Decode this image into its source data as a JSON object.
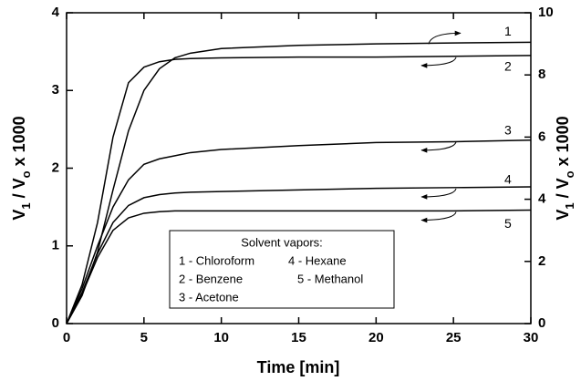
{
  "chart_data": {
    "type": "line",
    "xlabel": "Time  [min]",
    "ylabel": [
      {
        "text": "V"
      },
      {
        "text": "1",
        "sub": true
      },
      {
        "text": " / V"
      },
      {
        "text": "o",
        "sub": true
      },
      {
        "text": " x 1000"
      }
    ],
    "y2label": [
      {
        "text": "V"
      },
      {
        "text": "1",
        "sub": true
      },
      {
        "text": " / V"
      },
      {
        "text": "o",
        "sub": true
      },
      {
        "text": " x 1000"
      }
    ],
    "x": [
      0,
      1,
      2,
      3,
      4,
      5,
      6,
      7,
      8,
      10,
      15,
      20,
      25,
      30
    ],
    "series": [
      {
        "name": "1 - Chloroform",
        "color": "#000000",
        "axis": "y2",
        "values": [
          0,
          0.9,
          2.3,
          4.3,
          6.2,
          7.5,
          8.2,
          8.55,
          8.7,
          8.85,
          8.95,
          9.0,
          9.03,
          9.05
        ]
      },
      {
        "name": "2 - Benzene",
        "color": "#000000",
        "values": [
          0,
          0.5,
          1.3,
          2.4,
          3.1,
          3.3,
          3.37,
          3.4,
          3.41,
          3.42,
          3.43,
          3.43,
          3.44,
          3.45
        ]
      },
      {
        "name": "3 - Acetone",
        "color": "#000000",
        "values": [
          0,
          0.45,
          1.0,
          1.5,
          1.85,
          2.05,
          2.12,
          2.16,
          2.2,
          2.24,
          2.29,
          2.33,
          2.34,
          2.36
        ]
      },
      {
        "name": "4 - Hexane",
        "color": "#000000",
        "values": [
          0,
          0.4,
          0.9,
          1.3,
          1.52,
          1.62,
          1.66,
          1.68,
          1.69,
          1.7,
          1.72,
          1.74,
          1.75,
          1.76
        ]
      },
      {
        "name": "5 - Methanol",
        "color": "#000000",
        "values": [
          0,
          0.38,
          0.85,
          1.2,
          1.36,
          1.42,
          1.44,
          1.45,
          1.45,
          1.45,
          1.45,
          1.45,
          1.45,
          1.46
        ]
      }
    ],
    "annotations": [
      "1",
      "2",
      "3",
      "4",
      "5"
    ],
    "legend_title": "Solvent vapors:",
    "xlim": [
      0,
      30
    ],
    "xticks": [
      0,
      5,
      10,
      15,
      20,
      25,
      30
    ],
    "ylim": [
      0,
      4
    ],
    "yticks": [
      0,
      1,
      2,
      3,
      4
    ],
    "y2lim": [
      0,
      10
    ],
    "y2ticks": [
      0,
      2,
      4,
      6,
      8,
      10
    ]
  }
}
